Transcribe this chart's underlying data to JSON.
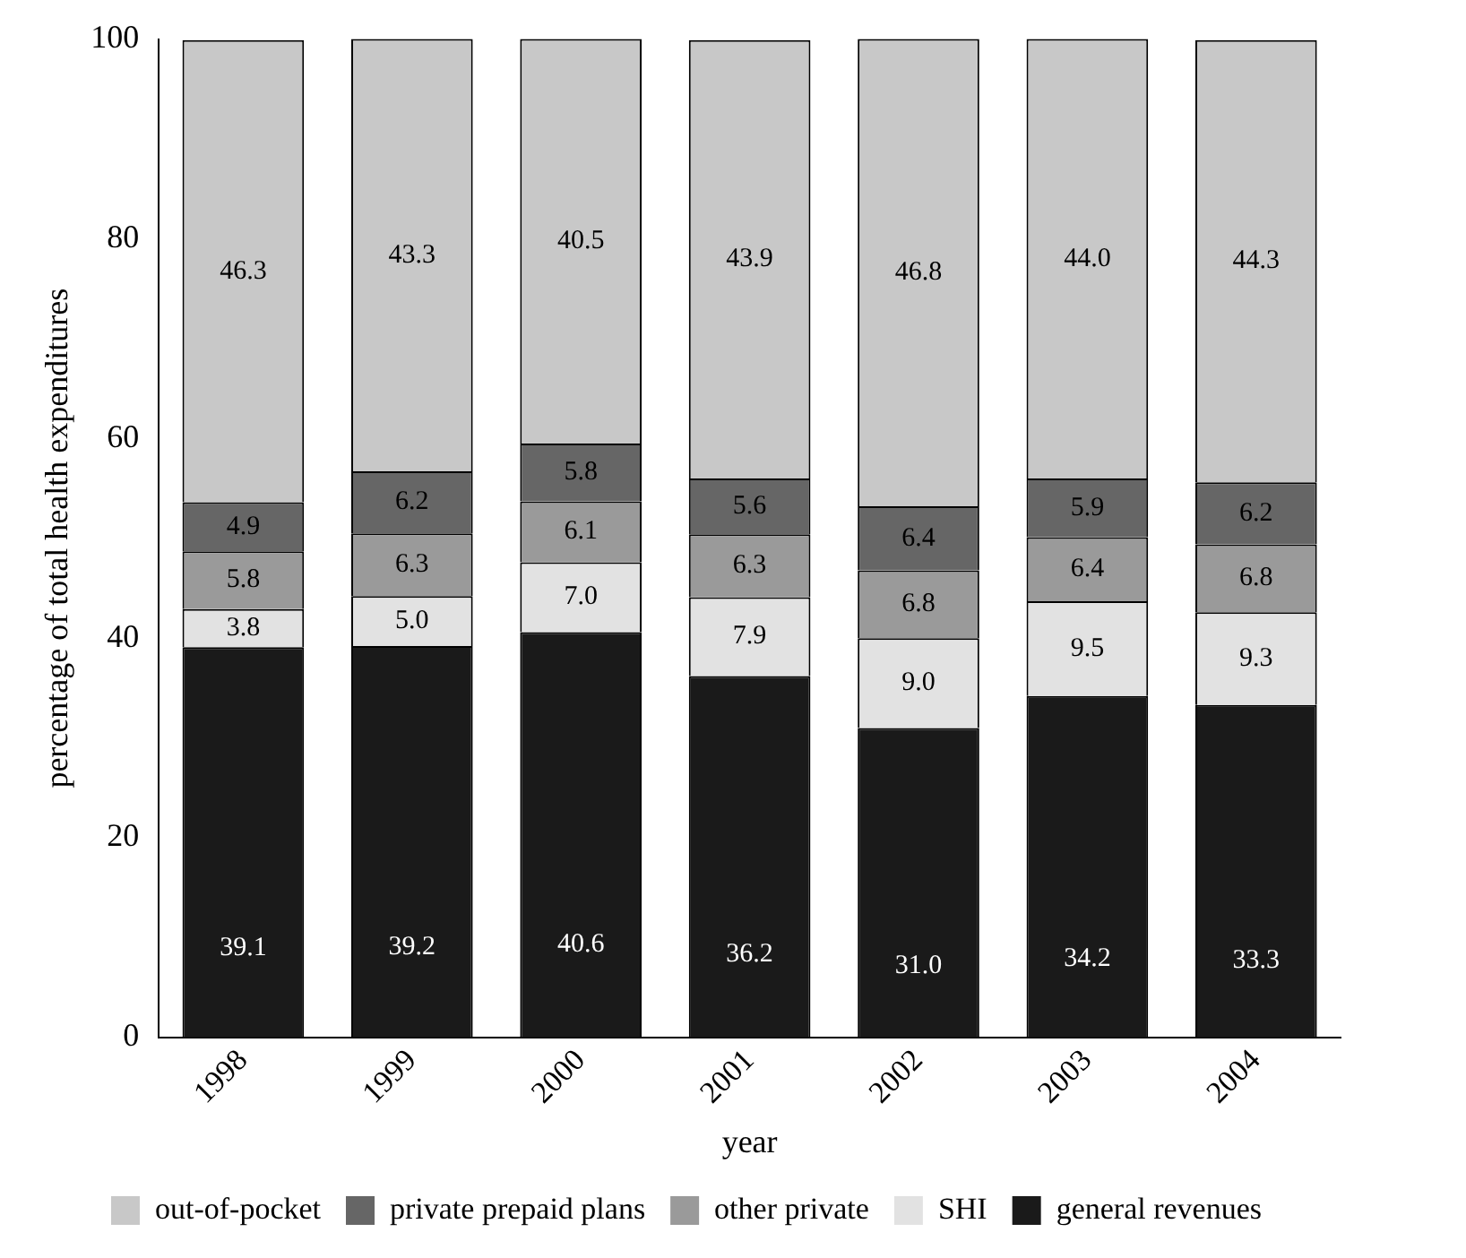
{
  "chart_data": {
    "type": "bar",
    "stacked": true,
    "xlabel": "year",
    "ylabel": "percentage of total health expenditures",
    "categories": [
      "1998",
      "1999",
      "2000",
      "2001",
      "2002",
      "2003",
      "2004"
    ],
    "series": [
      {
        "name": "general revenues",
        "color": "#1a1a1a",
        "values": [
          39.1,
          39.2,
          40.6,
          36.2,
          31.0,
          34.2,
          33.3
        ],
        "value_labels": [
          "39.1",
          "39.2",
          "40.6",
          "36.2",
          "31.0",
          "34.2",
          "33.3"
        ]
      },
      {
        "name": "SHI",
        "color": "#e2e2e2",
        "values": [
          3.8,
          5.0,
          7.0,
          7.9,
          9.0,
          9.5,
          9.3
        ],
        "value_labels": [
          "3.8",
          "5.0",
          "7.0",
          "7.9",
          "9.0",
          "9.5",
          "9.3"
        ]
      },
      {
        "name": "other private",
        "color": "#9a9a9a",
        "values": [
          5.8,
          6.3,
          6.1,
          6.3,
          6.8,
          6.4,
          6.8
        ],
        "value_labels": [
          "5.8",
          "6.3",
          "6.1",
          "6.3",
          "6.8",
          "6.4",
          "6.8"
        ]
      },
      {
        "name": "private prepaid plans",
        "color": "#666666",
        "values": [
          4.9,
          6.2,
          5.8,
          5.6,
          6.4,
          5.9,
          6.2
        ],
        "value_labels": [
          "4.9",
          "6.2",
          "5.8",
          "5.6",
          "6.4",
          "5.9",
          "6.2"
        ]
      },
      {
        "name": "out-of-pocket",
        "color": "#c8c8c8",
        "values": [
          46.3,
          43.3,
          40.5,
          43.9,
          46.8,
          44.0,
          44.3
        ],
        "value_labels": [
          "46.3",
          "43.3",
          "40.5",
          "43.9",
          "46.8",
          "44.0",
          "44.3"
        ]
      }
    ],
    "ylim": [
      0,
      100
    ],
    "yticks": [
      0,
      20,
      40,
      60,
      80,
      100
    ],
    "grid": false,
    "legend": "bottom"
  }
}
